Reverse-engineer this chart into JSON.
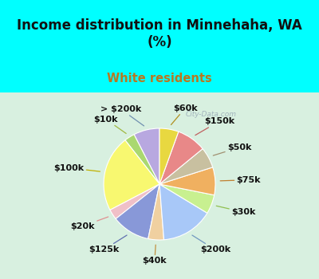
{
  "title": "Income distribution in Minnehaha, WA\n(%)",
  "subtitle": "White residents",
  "title_color": "#111111",
  "subtitle_color": "#b87820",
  "bg_cyan": "#00ffff",
  "bg_chart": "#d8f0e0",
  "watermark": "City-Data.com",
  "labels": [
    "> $200k",
    "$10k",
    "$100k",
    "$20k",
    "$125k",
    "$40k",
    "$200k",
    "$30k",
    "$75k",
    "$50k",
    "$150k",
    "$60k"
  ],
  "values": [
    7.5,
    3.0,
    22.0,
    3.0,
    11.0,
    4.5,
    15.0,
    5.5,
    8.0,
    6.0,
    8.5,
    5.5
  ],
  "colors": [
    "#b8a8e0",
    "#aad870",
    "#f8f870",
    "#f0c0c8",
    "#8898d8",
    "#f0d0a0",
    "#a8c8f8",
    "#c8f090",
    "#f0b060",
    "#c8c0a0",
    "#e88888",
    "#e8d840"
  ],
  "label_colors": [
    "#7090b0",
    "#a0b840",
    "#c0b000",
    "#e09090",
    "#6070b0",
    "#c09040",
    "#7098c0",
    "#90c050",
    "#c08030",
    "#a09070",
    "#c06060",
    "#b09020"
  ],
  "startangle": 90,
  "label_fontsize": 8.0,
  "label_fontweight": "bold"
}
